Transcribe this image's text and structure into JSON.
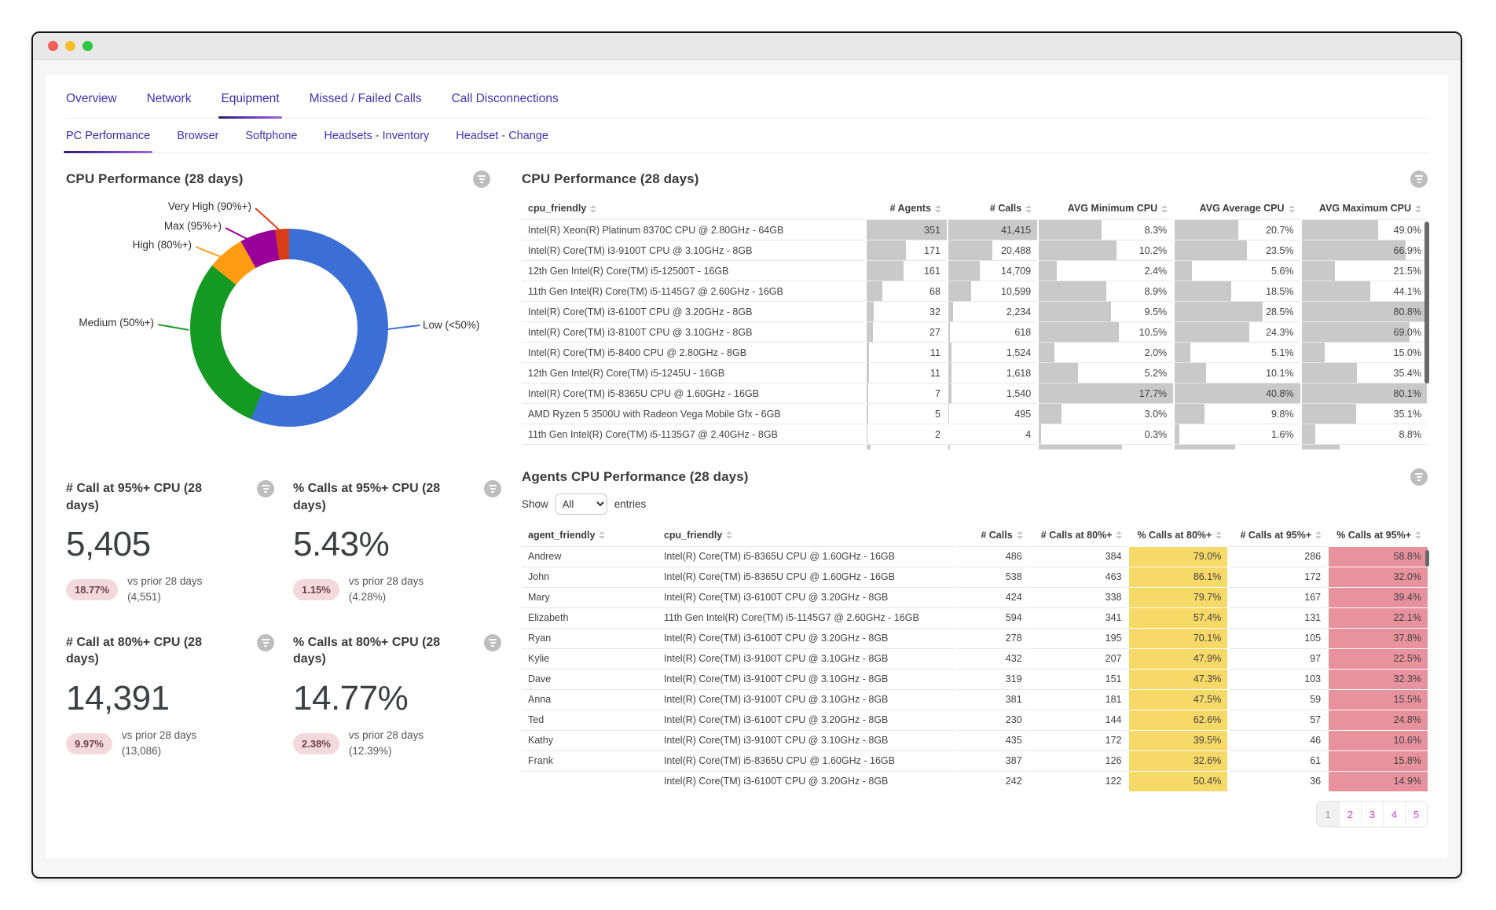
{
  "nav_tabs": {
    "items": [
      "Overview",
      "Network",
      "Equipment",
      "Missed / Failed Calls",
      "Call Disconnections"
    ],
    "active_index": 2
  },
  "sub_tabs": {
    "items": [
      "PC Performance",
      "Browser",
      "Softphone",
      "Headsets - Inventory",
      "Headset - Change"
    ],
    "active_index": 0
  },
  "chart_data": {
    "type": "pie",
    "donut": true,
    "title": "CPU Performance (28 days)",
    "labels": [
      "Low (<50%)",
      "Medium (50%+)",
      "High (80%+)",
      "Max (95%+)",
      "Very High (90%+)"
    ],
    "values_pct_estimated": [
      56.3,
      29.5,
      6.1,
      5.8,
      2.3
    ],
    "colors": [
      "#3b6fd6",
      "#149a22",
      "#ff9c12",
      "#990099",
      "#d63d18"
    ],
    "legend_position": "outside-callouts",
    "start_angle_deg": 0
  },
  "kpis": [
    {
      "title": "# Call at 95%+ CPU (28 days)",
      "value": "5,405",
      "badge": "18.77%",
      "compare_line1": "vs prior 28 days",
      "compare_line2": "(4,551)"
    },
    {
      "title": "% Calls at 95%+ CPU (28 days)",
      "value": "5.43%",
      "badge": "1.15%",
      "compare_line1": "vs prior 28 days",
      "compare_line2": "(4.28%)"
    },
    {
      "title": "# Call at 80%+ CPU (28 days)",
      "value": "14,391",
      "badge": "9.97%",
      "compare_line1": "vs prior 28 days",
      "compare_line2": "(13,086)"
    },
    {
      "title": "% Calls at 80%+ CPU (28 days)",
      "value": "14.77%",
      "badge": "2.38%",
      "compare_line1": "vs prior 28 days",
      "compare_line2": "(12.39%)"
    }
  ],
  "cpu_table": {
    "title": "CPU Performance (28 days)",
    "columns": [
      "cpu_friendly",
      "# Agents",
      "# Calls",
      "AVG Minimum CPU",
      "AVG Average CPU",
      "AVG Maximum CPU"
    ],
    "rows": [
      [
        "Intel(R) Xeon(R) Platinum 8370C CPU @ 2.80GHz - 64GB",
        "351",
        "41,415",
        "8.3%",
        "20.7%",
        "49.0%"
      ],
      [
        "Intel(R) Core(TM) i3-9100T CPU @ 3.10GHz - 8GB",
        "171",
        "20,488",
        "10.2%",
        "23.5%",
        "66.9%"
      ],
      [
        "12th Gen Intel(R) Core(TM) i5-12500T - 16GB",
        "161",
        "14,709",
        "2.4%",
        "5.6%",
        "21.5%"
      ],
      [
        "11th Gen Intel(R) Core(TM) i5-1145G7 @ 2.60GHz - 16GB",
        "68",
        "10,599",
        "8.9%",
        "18.5%",
        "44.1%"
      ],
      [
        "Intel(R) Core(TM) i3-6100T CPU @ 3.20GHz - 8GB",
        "32",
        "2,234",
        "9.5%",
        "28.5%",
        "80.8%"
      ],
      [
        "Intel(R) Core(TM) i3-8100T CPU @ 3.10GHz - 8GB",
        "27",
        "618",
        "10.5%",
        "24.3%",
        "69.0%"
      ],
      [
        "Intel(R) Core(TM) i5-8400 CPU @ 2.80GHz - 8GB",
        "11",
        "1,524",
        "2.0%",
        "5.1%",
        "15.0%"
      ],
      [
        "12th Gen Intel(R) Core(TM) i5-1245U - 16GB",
        "11",
        "1,618",
        "5.2%",
        "10.1%",
        "35.4%"
      ],
      [
        "Intel(R) Core(TM) i5-8365U CPU @ 1.60GHz - 16GB",
        "7",
        "1,540",
        "17.7%",
        "40.8%",
        "80.1%"
      ],
      [
        "AMD Ryzen 5 3500U with Radeon Vega Mobile Gfx - 6GB",
        "5",
        "495",
        "3.0%",
        "9.8%",
        "35.1%"
      ],
      [
        "11th Gen Intel(R) Core(TM) i5-1135G7 @ 2.40GHz - 8GB",
        "2",
        "4",
        "0.3%",
        "1.6%",
        "8.8%"
      ]
    ],
    "partial_row_bars_pct": [
      5,
      2,
      62,
      48,
      30
    ]
  },
  "agents_table": {
    "title": "Agents CPU Performance (28 days)",
    "show_label": "Show",
    "entries_label": "entries",
    "page_size_selected": "All",
    "columns": [
      "agent_friendly",
      "cpu_friendly",
      "# Calls",
      "# Calls at 80%+",
      "% Calls at 80%+",
      "# Calls at 95%+",
      "% Calls at 95%+"
    ],
    "rows": [
      [
        "Andrew",
        "Intel(R) Core(TM) i5-8365U CPU @ 1.60GHz - 16GB",
        "486",
        "384",
        "79.0%",
        "286",
        "58.8%"
      ],
      [
        "John",
        "Intel(R) Core(TM) i5-8365U CPU @ 1.60GHz - 16GB",
        "538",
        "463",
        "86.1%",
        "172",
        "32.0%"
      ],
      [
        "Mary",
        "Intel(R) Core(TM) i3-6100T CPU @ 3.20GHz - 8GB",
        "424",
        "338",
        "79.7%",
        "167",
        "39.4%"
      ],
      [
        "Elizabeth",
        "11th Gen Intel(R) Core(TM) i5-1145G7 @ 2.60GHz - 16GB",
        "594",
        "341",
        "57.4%",
        "131",
        "22.1%"
      ],
      [
        "Ryan",
        "Intel(R) Core(TM) i3-6100T CPU @ 3.20GHz - 8GB",
        "278",
        "195",
        "70.1%",
        "105",
        "37.8%"
      ],
      [
        "Kylie",
        "Intel(R) Core(TM) i3-9100T CPU @ 3.10GHz - 8GB",
        "432",
        "207",
        "47.9%",
        "97",
        "22.5%"
      ],
      [
        "Dave",
        "Intel(R) Core(TM) i3-9100T CPU @ 3.10GHz - 8GB",
        "319",
        "151",
        "47.3%",
        "103",
        "32.3%"
      ],
      [
        "Anna",
        "Intel(R) Core(TM) i3-9100T CPU @ 3.10GHz - 8GB",
        "381",
        "181",
        "47.5%",
        "59",
        "15.5%"
      ],
      [
        "Ted",
        "Intel(R) Core(TM) i3-6100T CPU @ 3.20GHz - 8GB",
        "230",
        "144",
        "62.6%",
        "57",
        "24.8%"
      ],
      [
        "Kathy",
        "Intel(R) Core(TM) i3-9100T CPU @ 3.10GHz - 8GB",
        "435",
        "172",
        "39.5%",
        "46",
        "10.6%"
      ],
      [
        "Frank",
        "Intel(R) Core(TM) i5-8365U CPU @ 1.60GHz - 16GB",
        "387",
        "126",
        "32.6%",
        "61",
        "15.8%"
      ],
      [
        "",
        "Intel(R) Core(TM) i3-6100T CPU @ 3.20GHz - 8GB",
        "242",
        "122",
        "50.4%",
        "36",
        "14.9%"
      ]
    ]
  },
  "pagination": {
    "pages": [
      "1",
      "2",
      "3",
      "4",
      "5"
    ],
    "active_index": 0
  },
  "colors": {
    "tab_purple": "#4331b8",
    "bar_grey": "#c9c9c9",
    "yellow_cell": "#f7d968",
    "pink_cell": "#e8929e",
    "badge_bg": "#f4d9dc",
    "badge_text": "#70444b",
    "pagination_magenta": "#cf39cd"
  }
}
